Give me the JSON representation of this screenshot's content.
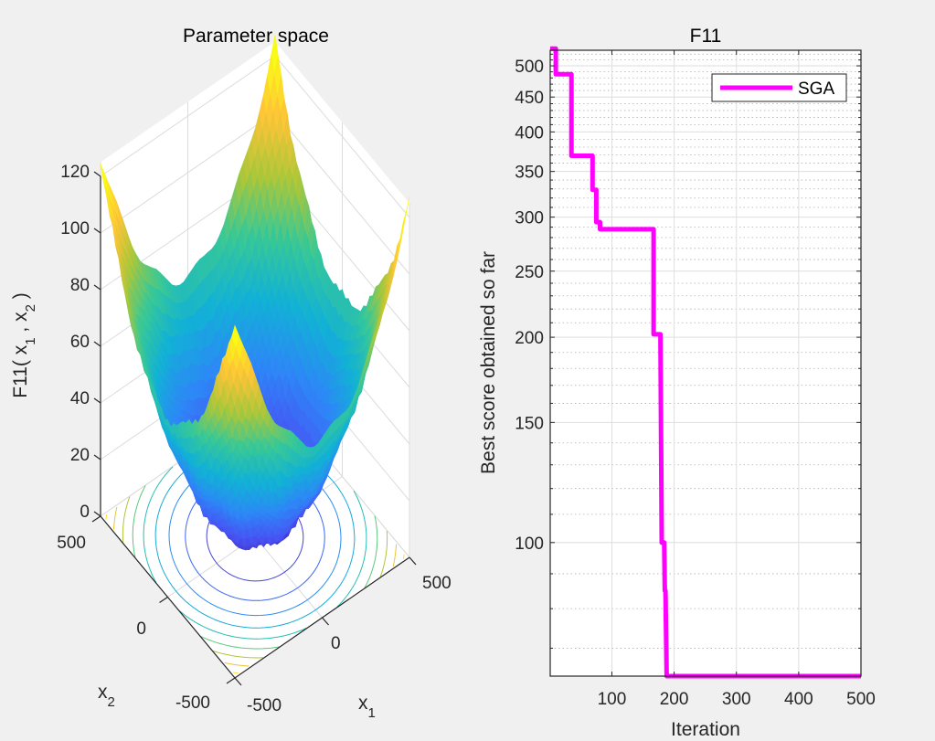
{
  "chart_data": [
    {
      "type": "surface",
      "title": "Parameter space",
      "function_name": "F11",
      "xlabel": "x_1",
      "ylabel": "x_2",
      "zlabel": "F11( x_1 , x_2 )",
      "xlim": [
        -500,
        500
      ],
      "ylim": [
        -500,
        500
      ],
      "zlim": [
        0,
        120
      ],
      "xticks": [
        -500,
        0,
        500
      ],
      "yticks": [
        -500,
        0,
        500
      ],
      "zticks": [
        0,
        20,
        40,
        60,
        80,
        100,
        120
      ],
      "xtick_labels": [
        "-500",
        "0",
        "500"
      ],
      "ytick_labels": [
        "-500",
        "0",
        "500"
      ],
      "ztick_labels": [
        "0",
        "20",
        "40",
        "60",
        "80",
        "100",
        "120"
      ],
      "colormap": "parula",
      "contour_on_floor": true,
      "grid": true
    },
    {
      "type": "line",
      "title": "F11",
      "xlabel": "Iteration",
      "ylabel": "Best score obtained so far",
      "yscale": "log",
      "xlim": [
        1,
        500
      ],
      "ylim": [
        63.7,
        527
      ],
      "xticks": [
        100,
        200,
        300,
        400,
        500
      ],
      "xtick_labels": [
        "100",
        "200",
        "300",
        "400",
        "500"
      ],
      "yticks": [
        100,
        150,
        200,
        250,
        300,
        350,
        400,
        450,
        500
      ],
      "ytick_labels": [
        "100",
        "150",
        "200",
        "250",
        "300",
        "350",
        "400",
        "450",
        "500"
      ],
      "grid": true,
      "minor_grid": true,
      "legend_position": "top-right",
      "series": [
        {
          "name": "SGA",
          "color": "#ff00ff",
          "step_points": [
            [
              1,
              530
            ],
            [
              10,
              530
            ],
            [
              10,
              486
            ],
            [
              35,
              486
            ],
            [
              35,
              369
            ],
            [
              69,
              369
            ],
            [
              69,
              329
            ],
            [
              75,
              329
            ],
            [
              75,
              295
            ],
            [
              81,
              295
            ],
            [
              81,
              288
            ],
            [
              167,
              288
            ],
            [
              167,
              202
            ],
            [
              178,
              202
            ],
            [
              180,
              100
            ],
            [
              184,
              100
            ],
            [
              185,
              85
            ],
            [
              186,
              85
            ],
            [
              188,
              63.7
            ],
            [
              500,
              63.7
            ]
          ]
        }
      ]
    }
  ]
}
